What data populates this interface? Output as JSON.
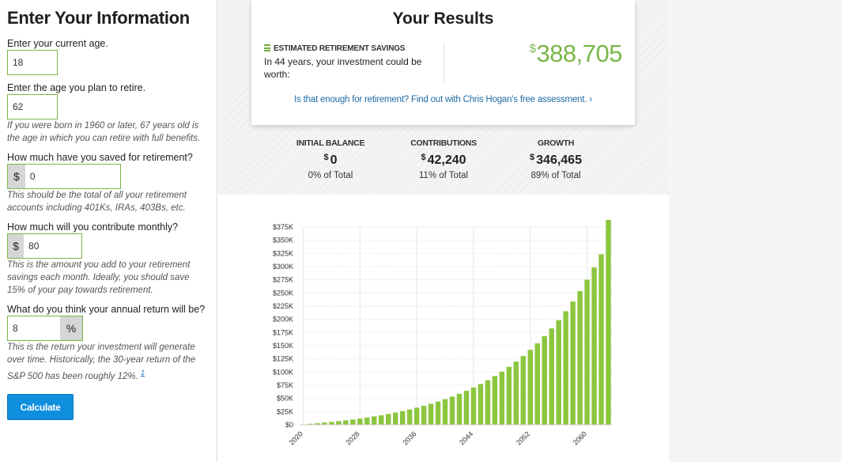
{
  "form": {
    "title": "Enter Your Information",
    "age_label": "Enter your current age.",
    "age_value": "18",
    "retire_label": "Enter the age you plan to retire.",
    "retire_value": "62",
    "retire_help": "If you were born in 1960 or later, 67 years old is the age in which you can retire with full benefits.",
    "saved_label": "How much have you saved for retirement?",
    "saved_prefix": "$",
    "saved_value": "0",
    "saved_help": "This should be the total of all your retirement accounts including 401Ks, IRAs, 403Bs, etc.",
    "monthly_label": "How much will you contribute monthly?",
    "monthly_prefix": "$",
    "monthly_value": "80",
    "monthly_help": "This is the amount you add to your retirement savings each month. Ideally, you should save 15% of your pay towards retirement.",
    "return_label": "What do you think your annual return will be?",
    "return_value": "8",
    "return_suffix": "%",
    "return_help": "This is the return your investment will generate over time. Historically, the 30-year return of the S&P 500 has been roughly 12%.",
    "return_footnote": "1",
    "calculate_label": "Calculate"
  },
  "results": {
    "title": "Your Results",
    "estimated_label": "Estimated Retirement Savings",
    "estimated_desc": "In 44 years, your investment could be worth:",
    "currency": "$",
    "total_value": "388,705",
    "assessment_link": "Is that enough for retirement? Find out with Chris Hogan's free assessment. ›"
  },
  "stats": [
    {
      "label": "Initial Balance",
      "currency": "$",
      "value": "0",
      "percent": "0% of Total"
    },
    {
      "label": "Contributions",
      "currency": "$",
      "value": "42,240",
      "percent": "11% of Total"
    },
    {
      "label": "Growth",
      "currency": "$",
      "value": "346,465",
      "percent": "89% of Total"
    }
  ],
  "icons": {
    "estimated": "coins-icon",
    "link_arrow": "chevron-right-icon"
  },
  "colors": {
    "accent_green": "#7ab648",
    "bar_green": "#8cc63f",
    "button_blue": "#0f8fdd",
    "link_blue": "#1e6ca6"
  },
  "chart_data": {
    "type": "bar",
    "title": "",
    "xlabel": "",
    "ylabel": "",
    "ylim": [
      0,
      375000
    ],
    "y_ticks": [
      "$0",
      "$25K",
      "$50K",
      "$75K",
      "$100K",
      "$125K",
      "$150K",
      "$175K",
      "$200K",
      "$225K",
      "$250K",
      "$275K",
      "$300K",
      "$325K",
      "$350K",
      "$375K"
    ],
    "x_tick_labels": [
      "2020",
      "2028",
      "2036",
      "2044",
      "2052",
      "2060"
    ],
    "grid": true,
    "series": [
      {
        "x": [
          2020,
          2021,
          2022,
          2023,
          2024,
          2025,
          2026,
          2027,
          2028,
          2029,
          2030,
          2031,
          2032,
          2033,
          2034,
          2035,
          2036,
          2037,
          2038,
          2039,
          2040,
          2041,
          2042,
          2043,
          2044,
          2045,
          2046,
          2047,
          2048,
          2049,
          2050,
          2051,
          2052,
          2053,
          2054,
          2055,
          2056,
          2057,
          2058,
          2059,
          2060,
          2061,
          2062,
          2063
        ],
        "values": [
          1000,
          2000,
          3100,
          4300,
          5600,
          7000,
          8500,
          10100,
          11900,
          13800,
          15900,
          18100,
          20600,
          23200,
          26000,
          29100,
          32400,
          36000,
          39900,
          44100,
          48600,
          53500,
          58800,
          64500,
          70700,
          77400,
          84600,
          92400,
          100900,
          110000,
          119900,
          130600,
          142100,
          154600,
          168100,
          182700,
          198400,
          215400,
          233800,
          253700,
          275100,
          298300,
          323400,
          388705
        ]
      }
    ]
  }
}
